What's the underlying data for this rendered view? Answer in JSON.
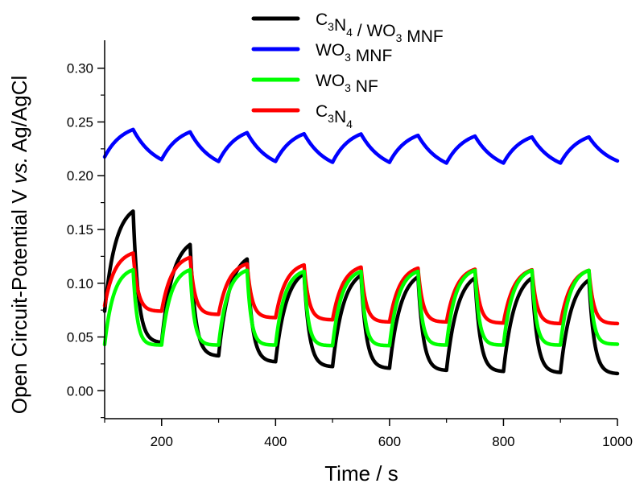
{
  "chart_data": {
    "type": "line",
    "title": "",
    "xlabel": "Time / s",
    "ylabel": {
      "prefix": "Open Circuit-Potential V ",
      "italic": "vs.",
      "suffix": " Ag/AgCl"
    },
    "xlim": [
      100,
      1000
    ],
    "ylim": [
      -0.026,
      0.326
    ],
    "xticks": [
      200,
      400,
      600,
      800,
      1000
    ],
    "xtick_labels": [
      "200",
      "400",
      "600",
      "800",
      "1000"
    ],
    "xminor_ticks": [
      100,
      300,
      500,
      700,
      900
    ],
    "yticks": [
      0.0,
      0.05,
      0.1,
      0.15,
      0.2,
      0.25,
      0.3
    ],
    "ytick_labels": [
      "0.00",
      "0.05",
      "0.10",
      "0.15",
      "0.20",
      "0.25",
      "0.30"
    ],
    "yminor_ticks": [
      -0.025,
      0.025,
      0.075,
      0.125,
      0.175,
      0.225,
      0.275
    ],
    "grid": false,
    "legend_position": "top-center",
    "x": [
      100,
      150,
      200,
      250,
      300,
      350,
      400,
      450,
      500,
      550,
      600,
      650,
      700,
      750,
      800,
      850,
      900,
      950,
      1000
    ],
    "series": [
      {
        "name": "C3N4 / WO3 MNF",
        "legend": [
          {
            "t": "C"
          },
          {
            "t": "3",
            "sub": true
          },
          {
            "t": "N"
          },
          {
            "t": "4",
            "sub": true
          },
          {
            "t": " / WO"
          },
          {
            "t": "3",
            "sub": true
          },
          {
            "t": " MNF"
          }
        ],
        "color": "#000000",
        "values": [
          0.074,
          0.167,
          0.045,
          0.136,
          0.0325,
          0.1225,
          0.027,
          0.109,
          0.0225,
          0.1075,
          0.021,
          0.106,
          0.019,
          0.105,
          0.018,
          0.105,
          0.017,
          0.103,
          0.016
        ],
        "rise_k": 2.6,
        "decay_k": 5.5
      },
      {
        "name": "WO3 MNF",
        "legend": [
          {
            "t": "WO"
          },
          {
            "t": "3",
            "sub": true
          },
          {
            "t": " MNF"
          }
        ],
        "color": "#0000ff",
        "values": [
          0.2175,
          0.243,
          0.215,
          0.2407,
          0.2133,
          0.24,
          0.2133,
          0.239,
          0.2125,
          0.2388,
          0.2125,
          0.2375,
          0.2118,
          0.2368,
          0.2118,
          0.236,
          0.2118,
          0.236,
          0.2138
        ],
        "rise_k": 1.6,
        "decay_k": 1.3
      },
      {
        "name": "WO3 NF",
        "legend": [
          {
            "t": "WO"
          },
          {
            "t": "3",
            "sub": true
          },
          {
            "t": " NF"
          }
        ],
        "color": "#00ff00",
        "values": [
          0.043,
          0.1125,
          0.0425,
          0.1125,
          0.0425,
          0.112,
          0.0425,
          0.111,
          0.042,
          0.111,
          0.042,
          0.111,
          0.0425,
          0.112,
          0.0425,
          0.112,
          0.0425,
          0.112,
          0.0433
        ],
        "rise_k": 3.2,
        "decay_k": 7
      },
      {
        "name": "C3N4",
        "legend": [
          {
            "t": "C"
          },
          {
            "t": "3",
            "sub": true
          },
          {
            "t": "N"
          },
          {
            "t": "4",
            "sub": true
          }
        ],
        "color": "#ff0000",
        "values": [
          0.079,
          0.128,
          0.074,
          0.124,
          0.071,
          0.118,
          0.068,
          0.117,
          0.066,
          0.115,
          0.064,
          0.114,
          0.064,
          0.113,
          0.063,
          0.1125,
          0.0625,
          0.112,
          0.0625
        ],
        "rise_k": 2.8,
        "decay_k": 6
      }
    ]
  }
}
